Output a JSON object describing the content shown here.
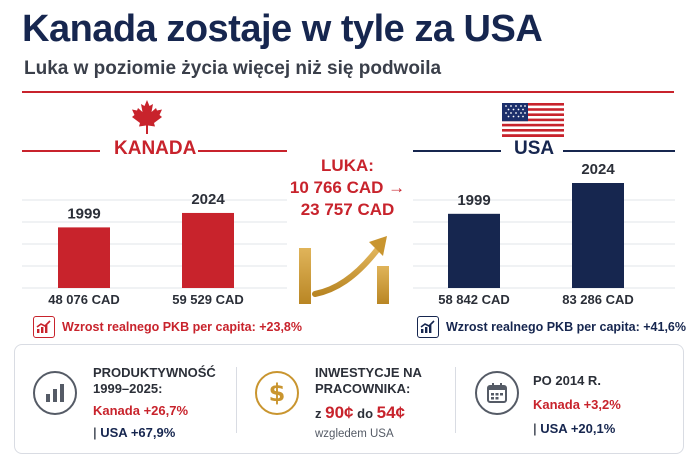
{
  "header": {
    "title": "Kanada zostaje w tyle za USA",
    "subtitle": "Luka w poziomie życia więcej niż się podwoila"
  },
  "colors": {
    "canada": "#c8232c",
    "usa": "#16264f",
    "gold": "#c9952f"
  },
  "canada": {
    "label": "KANADA",
    "icon": "maple-leaf-icon",
    "growth_text": "Wzrost realnego PKB per capita: +23,8%"
  },
  "usa": {
    "label": "USA",
    "icon": "us-flag-icon",
    "growth_text": "Wzrost realnego PKB per capita: +41,6%"
  },
  "gap": {
    "label": "LUKA:",
    "line1": "10 766 CAD →",
    "line2": "23 757 CAD",
    "icon": "rising-arrow-icon"
  },
  "chart_data": [
    {
      "type": "bar",
      "categories": [
        "1999",
        "2024"
      ],
      "values": [
        48076,
        59529
      ],
      "value_labels": [
        "48 076 CAD",
        "59 529 CAD"
      ],
      "series_label": "KANADA",
      "ylim": [
        0,
        90000
      ],
      "grid": true
    },
    {
      "type": "bar",
      "categories": [
        "1999",
        "2024"
      ],
      "values": [
        58842,
        83286
      ],
      "value_labels": [
        "58 842 CAD",
        "83 286 CAD"
      ],
      "series_label": "USA",
      "ylim": [
        0,
        90000
      ],
      "grid": true
    }
  ],
  "stats": [
    {
      "icon": "bar-chart-icon",
      "title_line1": "PRODUKTYWNOŚĆ",
      "title_line2": "1999–2025:",
      "canada": "Kanada +26,7%",
      "usa": "USA +67,9%"
    },
    {
      "icon": "dollar-icon",
      "title_line1": "INWESTYCJE NA",
      "title_line2": "PRACOWNIKA:",
      "prefix": "z",
      "from": "90¢",
      "middle": "do",
      "to": "54¢",
      "note": "wzgledem USA"
    },
    {
      "icon": "calendar-icon",
      "title_line1": "PO 2014 R.",
      "canada": "Kanada +3,2%",
      "usa": "USA +20,1%"
    }
  ]
}
